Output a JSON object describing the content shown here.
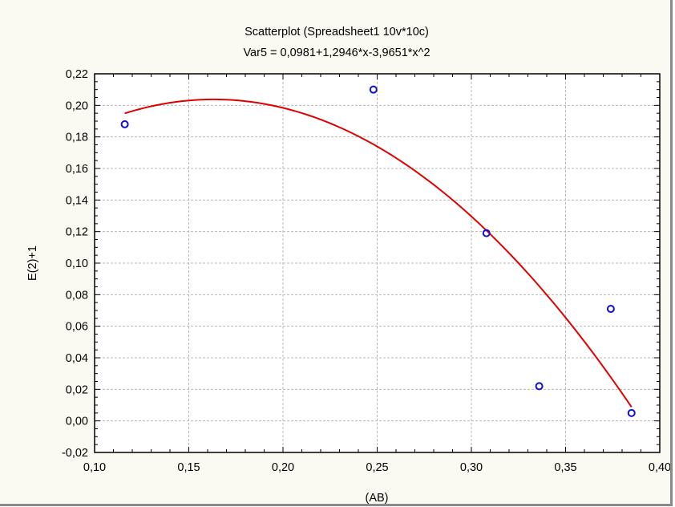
{
  "chart_data": {
    "type": "scatter",
    "title": "Scatterplot (Spreadsheet1 10v*10c)",
    "subtitle": "Var5 = 0,0981+1,2946*x-3,9651*x^2",
    "xlabel": "(AB)",
    "ylabel": "E(2)+1",
    "xlim": [
      0.1,
      0.4
    ],
    "ylim": [
      -0.02,
      0.22
    ],
    "x_ticks": [
      "0,10",
      "0,15",
      "0,20",
      "0,25",
      "0,30",
      "0,35",
      "0,40"
    ],
    "y_ticks": [
      "-0,02",
      "0,00",
      "0,02",
      "0,04",
      "0,06",
      "0,08",
      "0,10",
      "0,12",
      "0,14",
      "0,16",
      "0,18",
      "0,20",
      "0,22"
    ],
    "grid": true,
    "points": [
      {
        "x": 0.116,
        "y": 0.188
      },
      {
        "x": 0.248,
        "y": 0.21
      },
      {
        "x": 0.308,
        "y": 0.119
      },
      {
        "x": 0.336,
        "y": 0.022
      },
      {
        "x": 0.374,
        "y": 0.071
      },
      {
        "x": 0.385,
        "y": 0.005
      }
    ],
    "fit": {
      "type": "quadratic",
      "coefficients": [
        0.0981,
        1.2946,
        -3.9651
      ],
      "x_range": [
        0.116,
        0.385
      ]
    },
    "colors": {
      "points": "#1010d8",
      "fit_line": "#e00000",
      "grid": "#b8b8b8",
      "plot_background": "#ffffff",
      "page_background": "#fafaf2"
    }
  }
}
